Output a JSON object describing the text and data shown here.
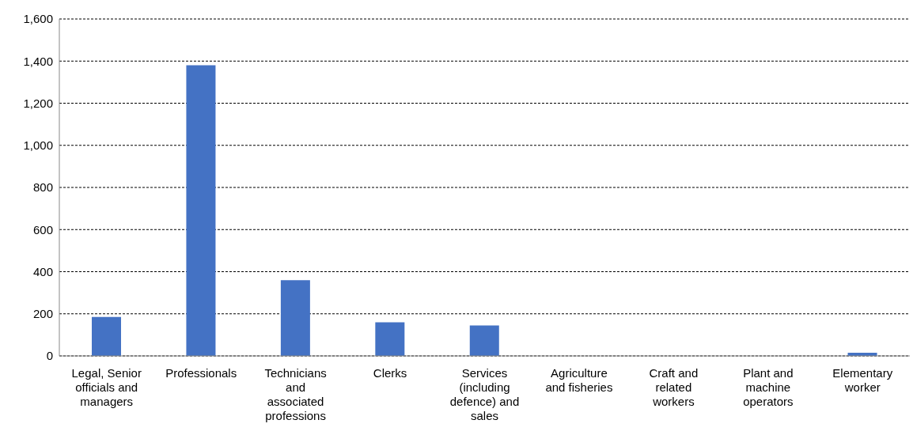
{
  "chart_data": {
    "type": "bar",
    "categories": [
      "Legal, Senior officials and managers",
      "Professionals",
      "Technicians and associated professions",
      "Clerks",
      "Services (including defence) and sales",
      "Agriculture and fisheries",
      "Craft and related workers",
      "Plant and machine operators",
      "Elementary worker"
    ],
    "values": [
      185,
      1380,
      360,
      160,
      145,
      0,
      0,
      0,
      15
    ],
    "color": "#4472c4",
    "ylim": [
      0,
      1600
    ],
    "yticks": [
      0,
      200,
      400,
      600,
      800,
      {
        "value": 1000,
        "label": "1,000"
      },
      {
        "value": 1200,
        "label": "1,200"
      },
      {
        "value": 1400,
        "label": "1,400"
      },
      {
        "value": 1600,
        "label": "1,600"
      }
    ],
    "grid": "y"
  }
}
